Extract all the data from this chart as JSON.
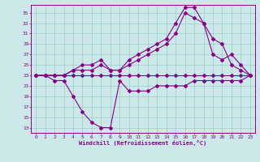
{
  "xlabel": "Windchill (Refroidissement éolien,°C)",
  "background_color": "#cce8e8",
  "line_color": "#880088",
  "grid_color": "#99cccc",
  "x_ticks": [
    0,
    1,
    2,
    3,
    4,
    5,
    6,
    7,
    8,
    9,
    10,
    11,
    12,
    13,
    14,
    15,
    16,
    17,
    18,
    19,
    20,
    21,
    22,
    23
  ],
  "y_ticks": [
    13,
    15,
    17,
    19,
    21,
    23,
    25,
    27,
    29,
    31,
    33,
    35
  ],
  "ylim": [
    12,
    36.5
  ],
  "xlim": [
    -0.5,
    23.5
  ],
  "series1_x": [
    0,
    1,
    2,
    3,
    4,
    5,
    6,
    7,
    8,
    9,
    10,
    11,
    12,
    13,
    14,
    15,
    16,
    17,
    18,
    19,
    20,
    21,
    22,
    23
  ],
  "series1_y": [
    23,
    23,
    23,
    23,
    23,
    23,
    23,
    23,
    23,
    23,
    23,
    23,
    23,
    23,
    23,
    23,
    23,
    23,
    23,
    23,
    23,
    23,
    23,
    23
  ],
  "series2_x": [
    0,
    1,
    2,
    3,
    4,
    5,
    6,
    7,
    8,
    9,
    10,
    11,
    12,
    13,
    14,
    15,
    16,
    17,
    18,
    19,
    20,
    21,
    22,
    23
  ],
  "series2_y": [
    23,
    23,
    22,
    22,
    19,
    16,
    14,
    13,
    13,
    22,
    20,
    20,
    20,
    21,
    21,
    21,
    21,
    22,
    22,
    22,
    22,
    22,
    22,
    23
  ],
  "series3_x": [
    0,
    1,
    2,
    3,
    4,
    5,
    6,
    7,
    8,
    9,
    10,
    11,
    12,
    13,
    14,
    15,
    16,
    17,
    18,
    19,
    20,
    21,
    22,
    23
  ],
  "series3_y": [
    23,
    23,
    23,
    23,
    24,
    24,
    24,
    25,
    24,
    24,
    25,
    26,
    27,
    28,
    29,
    31,
    35,
    34,
    33,
    30,
    29,
    25,
    24,
    23
  ],
  "series4_x": [
    0,
    1,
    2,
    3,
    4,
    5,
    6,
    7,
    8,
    9,
    10,
    11,
    12,
    13,
    14,
    15,
    16,
    17,
    18,
    19,
    20,
    21,
    22,
    23
  ],
  "series4_y": [
    23,
    23,
    23,
    23,
    24,
    25,
    25,
    26,
    24,
    24,
    26,
    27,
    28,
    29,
    30,
    33,
    36,
    36,
    33,
    27,
    26,
    27,
    25,
    23
  ]
}
